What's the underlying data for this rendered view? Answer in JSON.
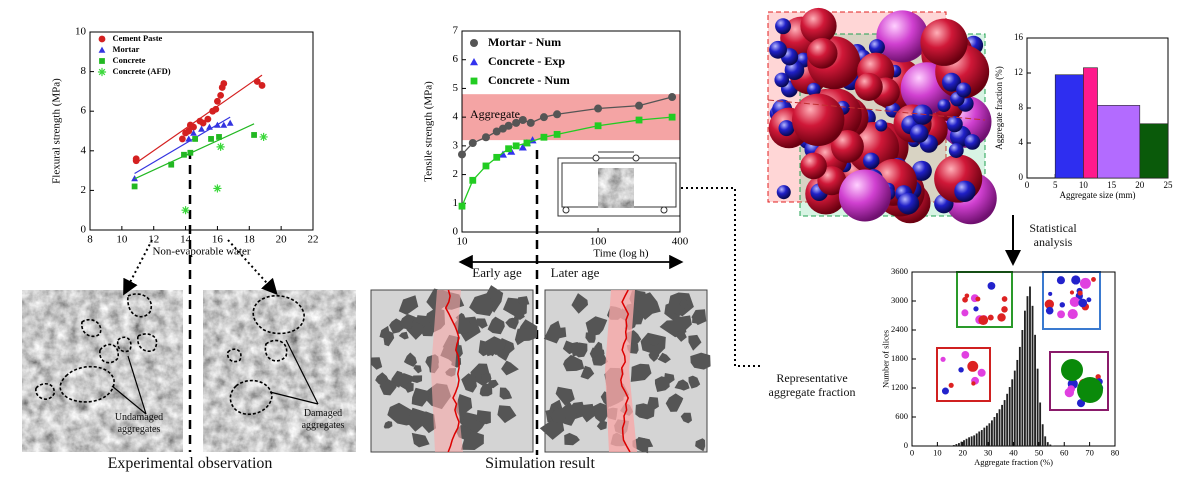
{
  "chart_data": [
    {
      "type": "scatter",
      "xlabel": "Non-evaporable water",
      "ylabel": "Flexural strength (MPa)",
      "xlim": [
        8,
        22
      ],
      "ylim": [
        0,
        10
      ],
      "xticks": [
        8,
        10,
        12,
        14,
        16,
        18,
        20,
        22
      ],
      "yticks": [
        0,
        2,
        4,
        6,
        8,
        10
      ],
      "legend": "upper left",
      "series": [
        {
          "name": "Cement Paste",
          "color": "#d42020",
          "marker": "circle",
          "fit": true,
          "x": [
            10.9,
            10.9,
            13.8,
            14.0,
            14.2,
            14.3,
            14.5,
            14.9,
            15.1,
            15.4,
            15.7,
            15.9,
            16.0,
            16.2,
            16.3,
            16.4,
            18.5,
            18.8
          ],
          "values": [
            3.5,
            3.6,
            4.6,
            4.9,
            5.0,
            5.3,
            5.2,
            5.5,
            5.4,
            5.6,
            6.0,
            6.1,
            6.5,
            6.8,
            7.2,
            7.4,
            7.5,
            7.3
          ]
        },
        {
          "name": "Mortar",
          "color": "#3434e0",
          "marker": "triangle",
          "fit": true,
          "x": [
            10.8,
            14.2,
            14.5,
            15.0,
            15.5,
            16.0,
            16.4,
            16.8
          ],
          "values": [
            2.6,
            4.6,
            4.9,
            5.1,
            5.2,
            5.3,
            5.3,
            5.4
          ]
        },
        {
          "name": "Concrete",
          "color": "#22b822",
          "marker": "square",
          "fit": true,
          "x": [
            10.8,
            13.1,
            13.9,
            14.3,
            14.6,
            15.6,
            16.1,
            18.3
          ],
          "values": [
            2.2,
            3.3,
            3.8,
            3.9,
            4.6,
            4.6,
            4.7,
            4.8
          ]
        },
        {
          "name": "Concrete (AFD)",
          "color": "#3ad83a",
          "marker": "asterisk",
          "x": [
            14.0,
            16.0,
            16.2,
            18.9
          ],
          "values": [
            1.0,
            2.1,
            4.2,
            4.7
          ]
        }
      ]
    },
    {
      "type": "scatter",
      "xlabel": "Time (log h)",
      "ylabel": "Tensile strength (MPa)",
      "log_x": true,
      "xlim": [
        10,
        400
      ],
      "ylim": [
        0,
        7
      ],
      "xticks": [
        10,
        100,
        400
      ],
      "yticks": [
        0,
        1,
        2,
        3,
        4,
        5,
        6,
        7
      ],
      "legend": "upper left",
      "band": [
        3.2,
        4.8
      ],
      "band_label": "Aggregate",
      "band_color": "#f4a4a4",
      "series": [
        {
          "name": "Mortar - Num",
          "color": "#555555",
          "marker": "circle",
          "connect": true,
          "x": [
            10,
            12,
            15,
            18,
            20,
            22,
            25,
            28,
            32,
            40,
            50,
            100,
            200,
            350
          ],
          "values": [
            2.7,
            3.1,
            3.3,
            3.5,
            3.6,
            3.7,
            3.8,
            3.9,
            3.8,
            4.0,
            4.1,
            4.3,
            4.4,
            4.7
          ]
        },
        {
          "name": "Concrete - Exp",
          "color": "#3333ee",
          "marker": "triangle",
          "x": [
            20,
            23,
            28,
            30,
            33
          ],
          "values": [
            2.7,
            2.8,
            2.95,
            3.1,
            3.2
          ]
        },
        {
          "name": "Concrete - Num",
          "color": "#22cc22",
          "marker": "square",
          "connect": true,
          "x": [
            10,
            12,
            15,
            18,
            22,
            25,
            30,
            40,
            50,
            100,
            200,
            350
          ],
          "values": [
            0.9,
            1.8,
            2.3,
            2.6,
            2.9,
            3.0,
            3.1,
            3.3,
            3.4,
            3.7,
            3.9,
            4.0
          ]
        }
      ]
    },
    {
      "type": "histogram",
      "xlabel": "Aggregate size (mm)",
      "ylabel": "Aggregate fraction (%)",
      "xlim": [
        0,
        25
      ],
      "ylim": [
        0,
        16
      ],
      "xticks": [
        0,
        5,
        10,
        15,
        20,
        25
      ],
      "yticks": [
        0,
        4,
        8,
        12,
        16
      ],
      "bins": [
        5,
        10,
        12.5,
        20,
        25
      ],
      "values": [
        11.8,
        12.6,
        8.3,
        6.2
      ],
      "colors": [
        "#2e2ef0",
        "#ff1a8c",
        "#b36bff",
        "#0a5a0a"
      ]
    },
    {
      "type": "histogram",
      "xlabel": "Aggregate fraction (%)",
      "ylabel": "Number of slices",
      "xlim": [
        0,
        80
      ],
      "ylim": [
        0,
        3600
      ],
      "xticks": [
        0,
        10,
        20,
        30,
        40,
        50,
        60,
        70,
        80
      ],
      "yticks": [
        0,
        600,
        1200,
        1800,
        2400,
        3000,
        3600
      ],
      "bins": [
        15,
        16,
        17,
        18,
        19,
        20,
        21,
        22,
        23,
        24,
        25,
        26,
        27,
        28,
        29,
        30,
        31,
        32,
        33,
        34,
        35,
        36,
        37,
        38,
        39,
        40,
        41,
        42,
        43,
        44,
        45,
        46,
        47,
        48,
        49,
        50,
        51,
        52,
        53,
        54,
        55,
        56
      ],
      "values": [
        10,
        20,
        40,
        60,
        90,
        120,
        150,
        180,
        200,
        220,
        260,
        300,
        330,
        380,
        420,
        470,
        530,
        600,
        680,
        760,
        850,
        950,
        1080,
        1220,
        1380,
        1560,
        1780,
        2050,
        2400,
        2800,
        3100,
        3300,
        2900,
        2300,
        1600,
        900,
        450,
        200,
        80,
        30,
        10
      ],
      "color": "#222222"
    }
  ],
  "labels": {
    "experimental_observation": "Experimental observation",
    "simulation_result": "Simulation result",
    "early_age": "Early age",
    "later_age": "Later age",
    "undamaged": "Undamaged aggregates",
    "damaged": "Damaged aggregates",
    "statistical": "Statistical analysis",
    "representative": "Representative aggregate fraction"
  }
}
